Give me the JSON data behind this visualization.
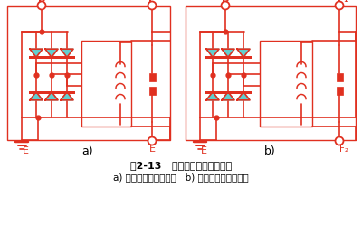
{
  "title_line1": "图2-13   交流发电机的搭铁型式",
  "title_line2": "a) 内搭铁型交流发电机   b) 外搭铁型交流发电机",
  "label_a": "a)",
  "label_b": "b)",
  "line_color": "#E03020",
  "diode_fill": "#60D0D0",
  "bg_color": "#FFFFFF",
  "title_fontsize": 8,
  "subtitle_fontsize": 7.5
}
